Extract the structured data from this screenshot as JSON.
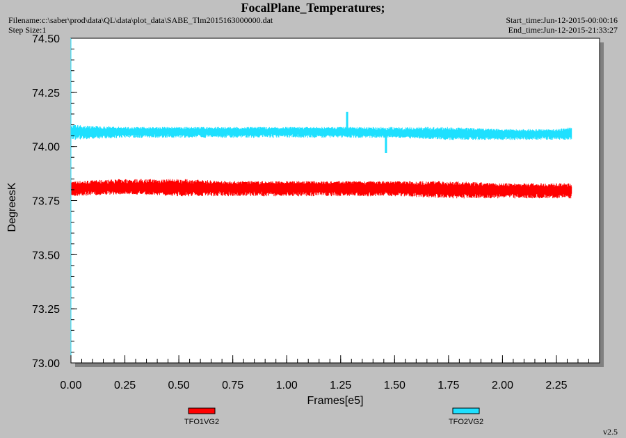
{
  "header": {
    "title": "FocalPlane_Temperatures;",
    "filename": "Filename:c:\\saber\\prod\\data\\QL\\data\\plot_data\\SABE_Tlm2015163000000.dat",
    "step_size": "Step Size:1",
    "start_time": "Start_time:Jun-12-2015-00:00:16",
    "end_time": "End_time:Jun-12-2015-21:33:27"
  },
  "footer": {
    "version": "v2.5"
  },
  "chart_data": {
    "type": "line",
    "xlabel": "Frames[e5]",
    "ylabel": "DegreesK",
    "xlim": [
      0.0,
      2.45
    ],
    "ylim": [
      73.0,
      74.5
    ],
    "x_ticks": [
      "0.00",
      "0.25",
      "0.50",
      "0.75",
      "1.00",
      "1.25",
      "1.50",
      "1.75",
      "2.00",
      "2.25"
    ],
    "y_ticks": [
      "73.00",
      "73.25",
      "73.50",
      "73.75",
      "74.00",
      "74.25",
      "74.50"
    ],
    "grid": false,
    "legend_position": "bottom",
    "series": [
      {
        "name": "TFO1VG2",
        "color": "#ff0000",
        "x": [
          0.0,
          0.25,
          0.5,
          0.75,
          1.0,
          1.25,
          1.5,
          1.75,
          2.0,
          2.25,
          2.32
        ],
        "y_min": [
          73.77,
          73.78,
          73.77,
          73.77,
          73.77,
          73.77,
          73.77,
          73.76,
          73.76,
          73.76,
          73.76
        ],
        "y_max": [
          73.84,
          73.85,
          73.85,
          73.84,
          73.84,
          73.84,
          73.84,
          73.84,
          73.83,
          73.83,
          73.83
        ],
        "y_mean": [
          73.81,
          73.81,
          73.81,
          73.81,
          73.81,
          73.81,
          73.81,
          73.8,
          73.8,
          73.8,
          73.8
        ]
      },
      {
        "name": "TFO2VG2",
        "color": "#1ee0ff",
        "x": [
          0.0,
          0.25,
          0.5,
          0.75,
          1.0,
          1.25,
          1.5,
          1.75,
          2.0,
          2.25,
          2.32
        ],
        "y_min": [
          74.03,
          74.04,
          74.04,
          74.04,
          74.04,
          74.04,
          74.04,
          74.03,
          74.03,
          74.03,
          74.03
        ],
        "y_max": [
          74.1,
          74.09,
          74.09,
          74.09,
          74.09,
          74.09,
          74.09,
          74.09,
          74.08,
          74.08,
          74.09
        ],
        "y_mean": [
          74.07,
          74.07,
          74.07,
          74.07,
          74.07,
          74.07,
          74.06,
          74.06,
          74.06,
          74.06,
          74.06
        ],
        "spikes": [
          {
            "x": 1.28,
            "y": 74.16
          },
          {
            "x": 1.46,
            "y": 73.97
          }
        ]
      }
    ]
  }
}
